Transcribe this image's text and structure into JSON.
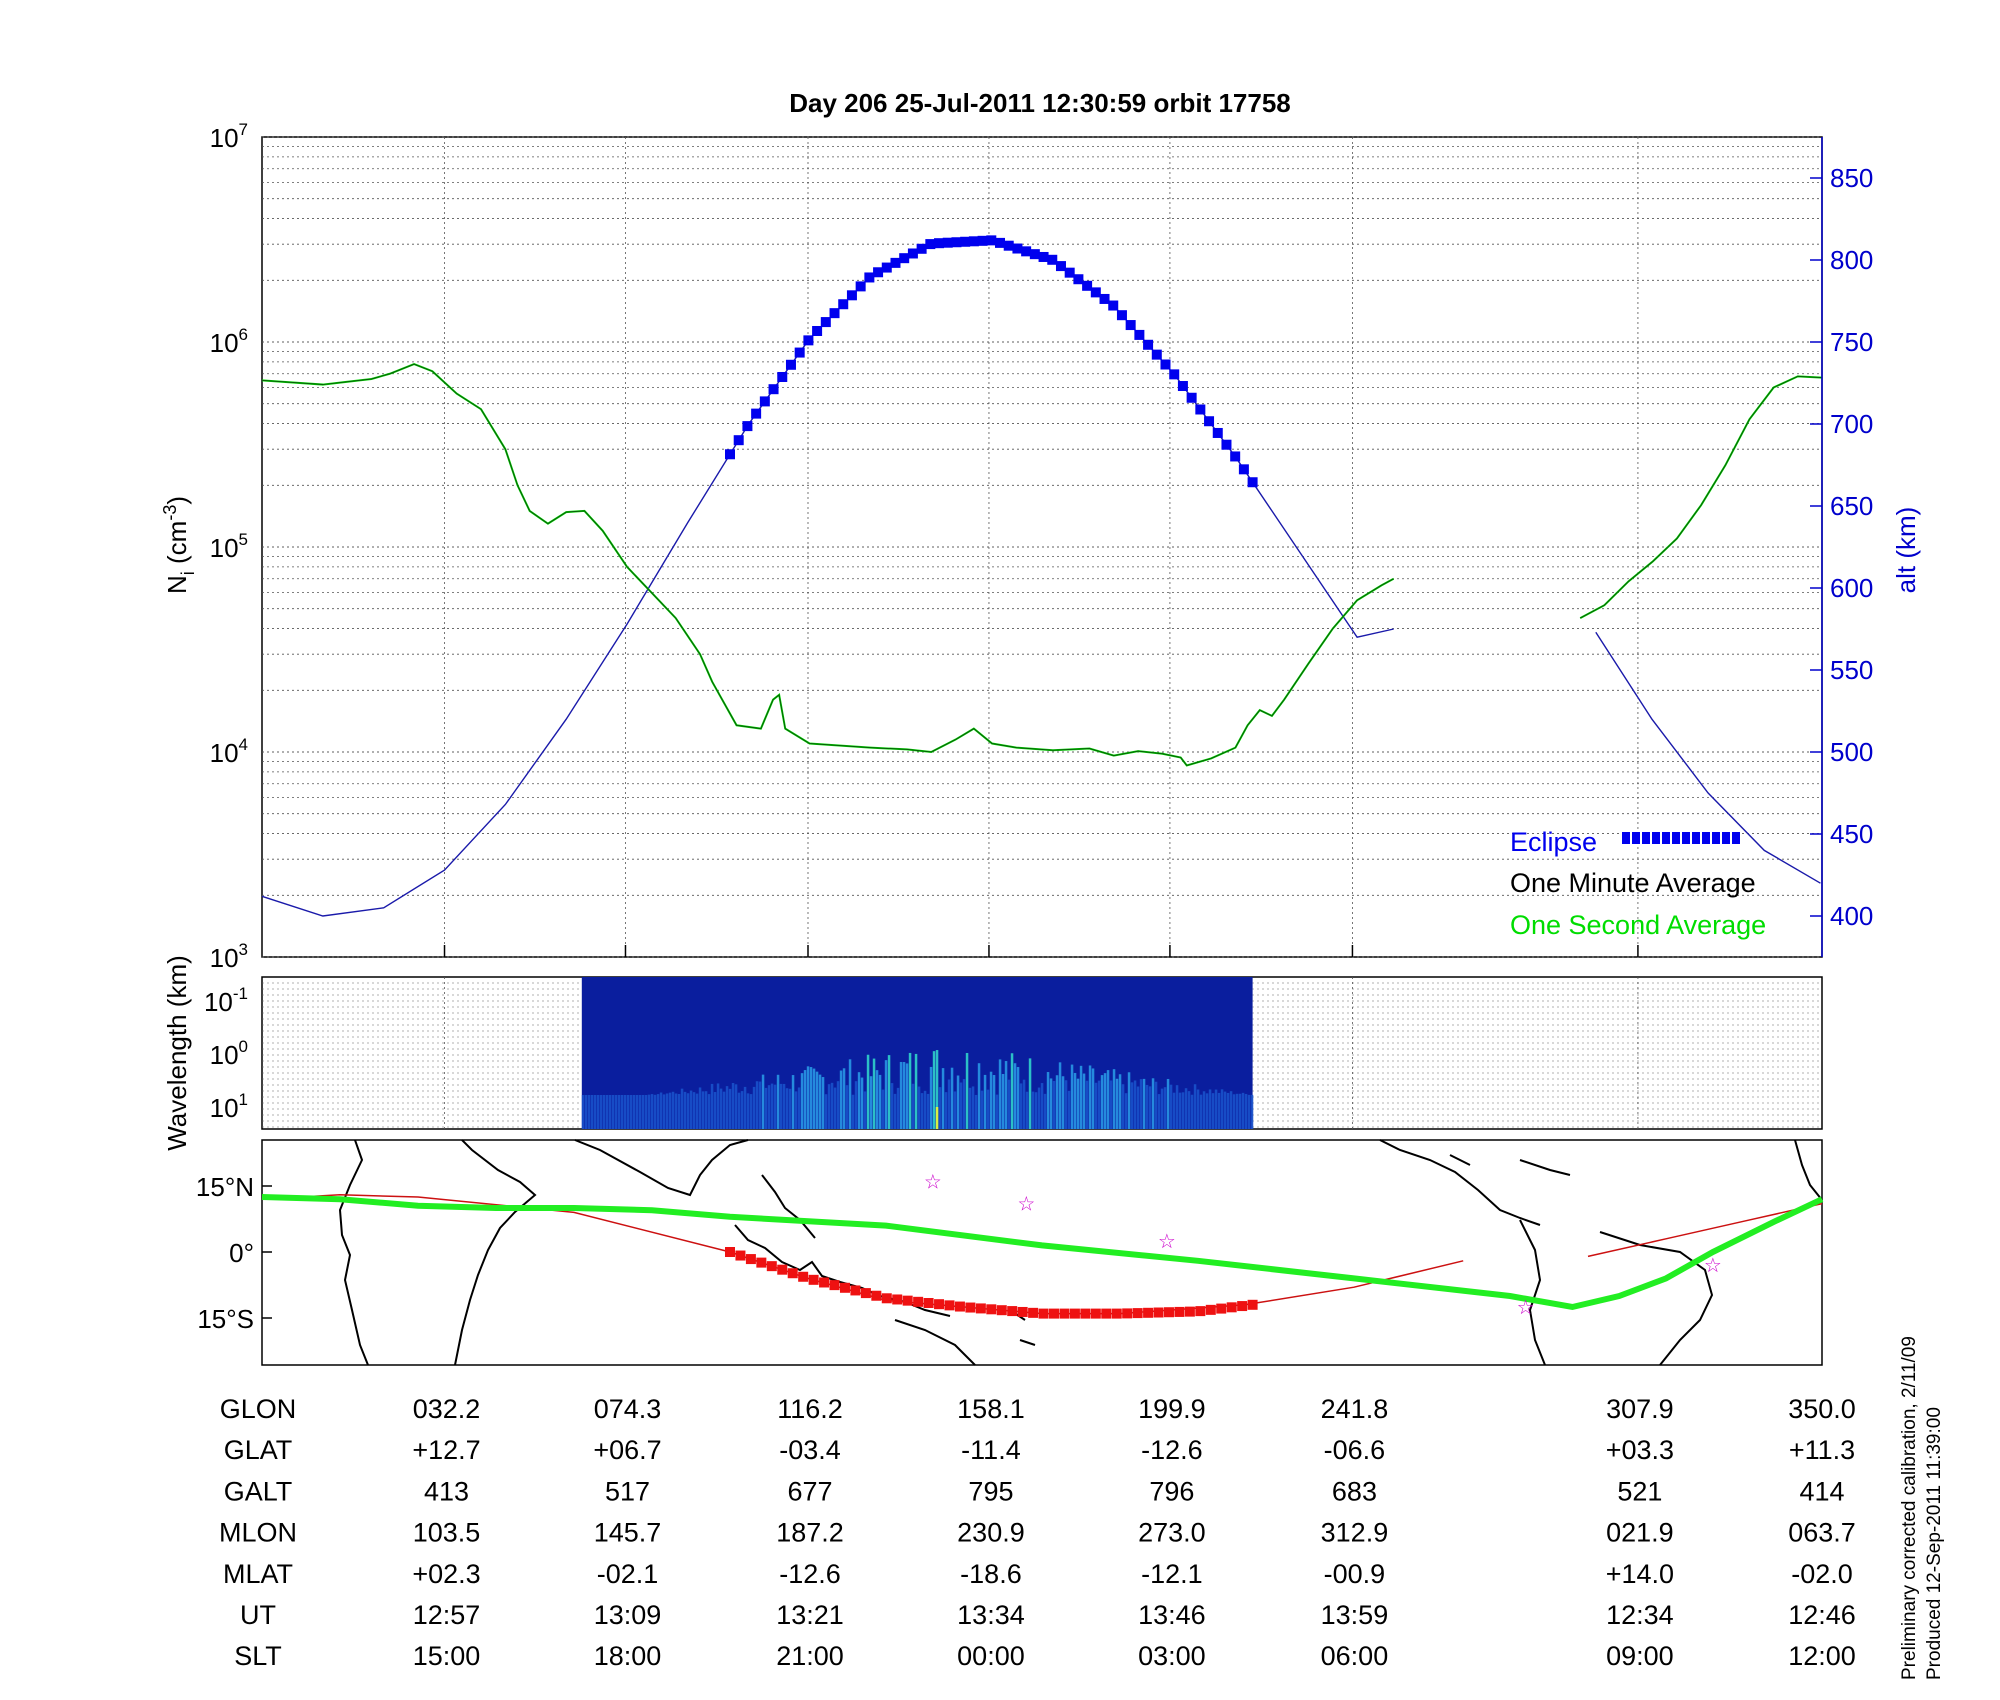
{
  "title": "Day 206  25-Jul-2011 12:30:59   orbit 17758",
  "top_panel": {
    "left_axis": {
      "label_base": "N",
      "label_sub": "i",
      "label_unit_open": "(cm",
      "label_unit_sup": "-3",
      "label_unit_close": ")",
      "scale": "log",
      "range": [
        1000,
        10000000
      ],
      "ticks": [
        {
          "base": "10",
          "exp": "3"
        },
        {
          "base": "10",
          "exp": "4"
        },
        {
          "base": "10",
          "exp": "5"
        },
        {
          "base": "10",
          "exp": "6"
        },
        {
          "base": "10",
          "exp": "7"
        }
      ]
    },
    "right_axis": {
      "label": "alt (km)",
      "color": "#0000cc",
      "range": [
        375,
        875
      ],
      "ticks": [
        "400",
        "450",
        "500",
        "550",
        "600",
        "650",
        "700",
        "750",
        "800",
        "850"
      ]
    },
    "legend": {
      "eclipse": "Eclipse",
      "one_minute": "One Minute Average",
      "one_second": "One Second Average"
    }
  },
  "middle_panel": {
    "label": "Wavelength (km)",
    "ticks": [
      {
        "base": "10",
        "exp": "-1"
      },
      {
        "base": "10",
        "exp": "0"
      },
      {
        "base": "10",
        "exp": "1"
      }
    ]
  },
  "map_panel": {
    "lat_ticks": [
      "15°N",
      "0°",
      "15°S"
    ]
  },
  "colors": {
    "eclipse": "#0000ee",
    "altitude": "#1a1aaa",
    "minute_avg": "#000000",
    "second_avg": "#00dd00",
    "track_thick": "#22ee22",
    "track_thin": "#cc1111",
    "eclipse_track": "#ee1111",
    "stars": "#cc00cc"
  },
  "chart_data": {
    "type": "line",
    "x_fraction_range": [
      0,
      1
    ],
    "density_segments": [
      [
        [
          0,
          650000
        ],
        [
          0.05,
          620000
        ],
        [
          0.09,
          660000
        ],
        [
          0.105,
          700000
        ],
        [
          0.125,
          780000
        ],
        [
          0.14,
          720000
        ],
        [
          0.16,
          560000
        ],
        [
          0.18,
          470000
        ],
        [
          0.2,
          300000
        ],
        [
          0.21,
          200000
        ],
        [
          0.22,
          150000
        ],
        [
          0.235,
          130000
        ],
        [
          0.25,
          148000
        ],
        [
          0.265,
          150000
        ],
        [
          0.28,
          120000
        ],
        [
          0.3,
          80000
        ],
        [
          0.32,
          60000
        ],
        [
          0.34,
          45000
        ],
        [
          0.36,
          30000
        ],
        [
          0.37,
          22000
        ],
        [
          0.39,
          13500
        ],
        [
          0.41,
          13000
        ],
        [
          0.42,
          18000
        ],
        [
          0.425,
          19000
        ],
        [
          0.43,
          13000
        ],
        [
          0.45,
          11000
        ],
        [
          0.5,
          10500
        ],
        [
          0.53,
          10300
        ],
        [
          0.55,
          10000
        ],
        [
          0.57,
          11500
        ],
        [
          0.585,
          13000
        ],
        [
          0.6,
          11000
        ],
        [
          0.62,
          10500
        ],
        [
          0.65,
          10200
        ],
        [
          0.68,
          10400
        ],
        [
          0.7,
          9600
        ],
        [
          0.72,
          10100
        ],
        [
          0.74,
          9800
        ],
        [
          0.755,
          9400
        ],
        [
          0.76,
          8600
        ],
        [
          0.78,
          9300
        ],
        [
          0.8,
          10500
        ],
        [
          0.81,
          13500
        ],
        [
          0.82,
          16000
        ],
        [
          0.83,
          15000
        ],
        [
          0.84,
          18000
        ],
        [
          0.86,
          27000
        ],
        [
          0.88,
          40000
        ],
        [
          0.9,
          55000
        ],
        [
          0.92,
          65000
        ],
        [
          0.93,
          70000
        ]
      ],
      [
        [
          1.0,
          45000
        ],
        [
          1.02,
          52000
        ],
        [
          1.04,
          68000
        ],
        [
          1.06,
          85000
        ],
        [
          1.08,
          110000
        ],
        [
          1.1,
          160000
        ],
        [
          1.12,
          250000
        ],
        [
          1.14,
          420000
        ],
        [
          1.16,
          600000
        ],
        [
          1.18,
          680000
        ],
        [
          1.2,
          670000
        ]
      ]
    ],
    "altitude_segments": [
      [
        [
          0,
          412
        ],
        [
          0.05,
          400
        ],
        [
          0.1,
          405
        ],
        [
          0.15,
          428
        ],
        [
          0.2,
          468
        ],
        [
          0.25,
          520
        ],
        [
          0.3,
          578
        ],
        [
          0.35,
          640
        ],
        [
          0.4,
          700
        ],
        [
          0.45,
          752
        ],
        [
          0.5,
          790
        ],
        [
          0.55,
          810
        ],
        [
          0.6,
          812
        ],
        [
          0.65,
          800
        ],
        [
          0.7,
          772
        ],
        [
          0.75,
          730
        ],
        [
          0.8,
          680
        ],
        [
          0.85,
          625
        ],
        [
          0.9,
          570
        ],
        [
          0.93,
          575
        ]
      ],
      [
        [
          1.0,
          573
        ],
        [
          1.05,
          520
        ],
        [
          1.1,
          475
        ],
        [
          1.15,
          440
        ],
        [
          1.2,
          420
        ]
      ]
    ],
    "eclipse_x_range": [
      0.3,
      0.635
    ],
    "spectrogram_x_range": [
      0.205,
      0.635
    ],
    "ground_track_thick": [
      [
        0,
        12.5
      ],
      [
        0.05,
        12
      ],
      [
        0.1,
        10.5
      ],
      [
        0.15,
        10
      ],
      [
        0.2,
        10
      ],
      [
        0.25,
        9.5
      ],
      [
        0.3,
        8
      ],
      [
        0.4,
        6
      ],
      [
        0.5,
        1.5
      ],
      [
        0.6,
        -2
      ],
      [
        0.7,
        -6
      ],
      [
        0.8,
        -10
      ],
      [
        0.84,
        -12.5
      ],
      [
        0.87,
        -10
      ],
      [
        0.9,
        -6
      ],
      [
        0.93,
        0
      ],
      [
        0.97,
        7
      ],
      [
        1.0,
        12
      ]
    ],
    "ground_track_thin": [
      [
        0,
        12
      ],
      [
        0.05,
        13
      ],
      [
        0.1,
        12.5
      ],
      [
        0.2,
        9
      ],
      [
        0.3,
        0
      ],
      [
        0.35,
        -6
      ],
      [
        0.4,
        -11
      ],
      [
        0.45,
        -12.5
      ],
      [
        0.5,
        -14
      ],
      [
        0.55,
        -14
      ],
      [
        0.63,
        -12
      ],
      [
        0.7,
        -8
      ],
      [
        0.77,
        -2
      ]
    ],
    "ground_track_thin_right": [
      [
        0.85,
        -1
      ],
      [
        0.9,
        3
      ],
      [
        0.95,
        7
      ],
      [
        1.0,
        11
      ]
    ],
    "eclipse_track": [
      [
        0.3,
        0
      ],
      [
        0.35,
        -6
      ],
      [
        0.4,
        -10.5
      ],
      [
        0.45,
        -12.5
      ],
      [
        0.5,
        -14
      ],
      [
        0.55,
        -14
      ],
      [
        0.6,
        -13.5
      ],
      [
        0.635,
        -12
      ]
    ],
    "stars": [
      [
        0.43,
        16
      ],
      [
        0.49,
        11
      ],
      [
        0.58,
        2.5
      ],
      [
        0.81,
        -12.5
      ],
      [
        0.93,
        -3
      ]
    ],
    "orbit_table": {
      "row_labels": [
        "GLON",
        "GLAT",
        "GALT",
        "MLON",
        "MLAT",
        "UT",
        "SLT"
      ],
      "columns": [
        {
          "x": 0.117,
          "values": [
            "032.2",
            "+12.7",
            "413",
            "103.5",
            "+02.3",
            "12:57",
            "15:00"
          ]
        },
        {
          "x": 0.233,
          "values": [
            "074.3",
            "+06.7",
            "517",
            "145.7",
            "-02.1",
            "13:09",
            "18:00"
          ]
        },
        {
          "x": 0.35,
          "values": [
            "116.2",
            "-03.4",
            "677",
            "187.2",
            "-12.6",
            "13:21",
            "21:00"
          ]
        },
        {
          "x": 0.466,
          "values": [
            "158.1",
            "-11.4",
            "795",
            "230.9",
            "-18.6",
            "13:34",
            "00:00"
          ]
        },
        {
          "x": 0.582,
          "values": [
            "199.9",
            "-12.6",
            "796",
            "273.0",
            "-12.1",
            "13:46",
            "03:00"
          ]
        },
        {
          "x": 0.699,
          "values": [
            "241.8",
            "-06.6",
            "683",
            "312.9",
            "-00.9",
            "13:59",
            "06:00"
          ]
        },
        {
          "x": 0.882,
          "values": [
            "307.9",
            "+03.3",
            "521",
            "021.9",
            "+14.0",
            "12:34",
            "09:00"
          ]
        },
        {
          "x": 1.0,
          "values": [
            "350.0",
            "+11.3",
            "414",
            "063.7",
            "-02.0",
            "12:46",
            "12:00"
          ]
        }
      ]
    }
  },
  "footer": {
    "calibration": "Preliminary corrected calibration, 2/11/09",
    "produced": "Produced 12-Sep-2011 11:39:00"
  }
}
